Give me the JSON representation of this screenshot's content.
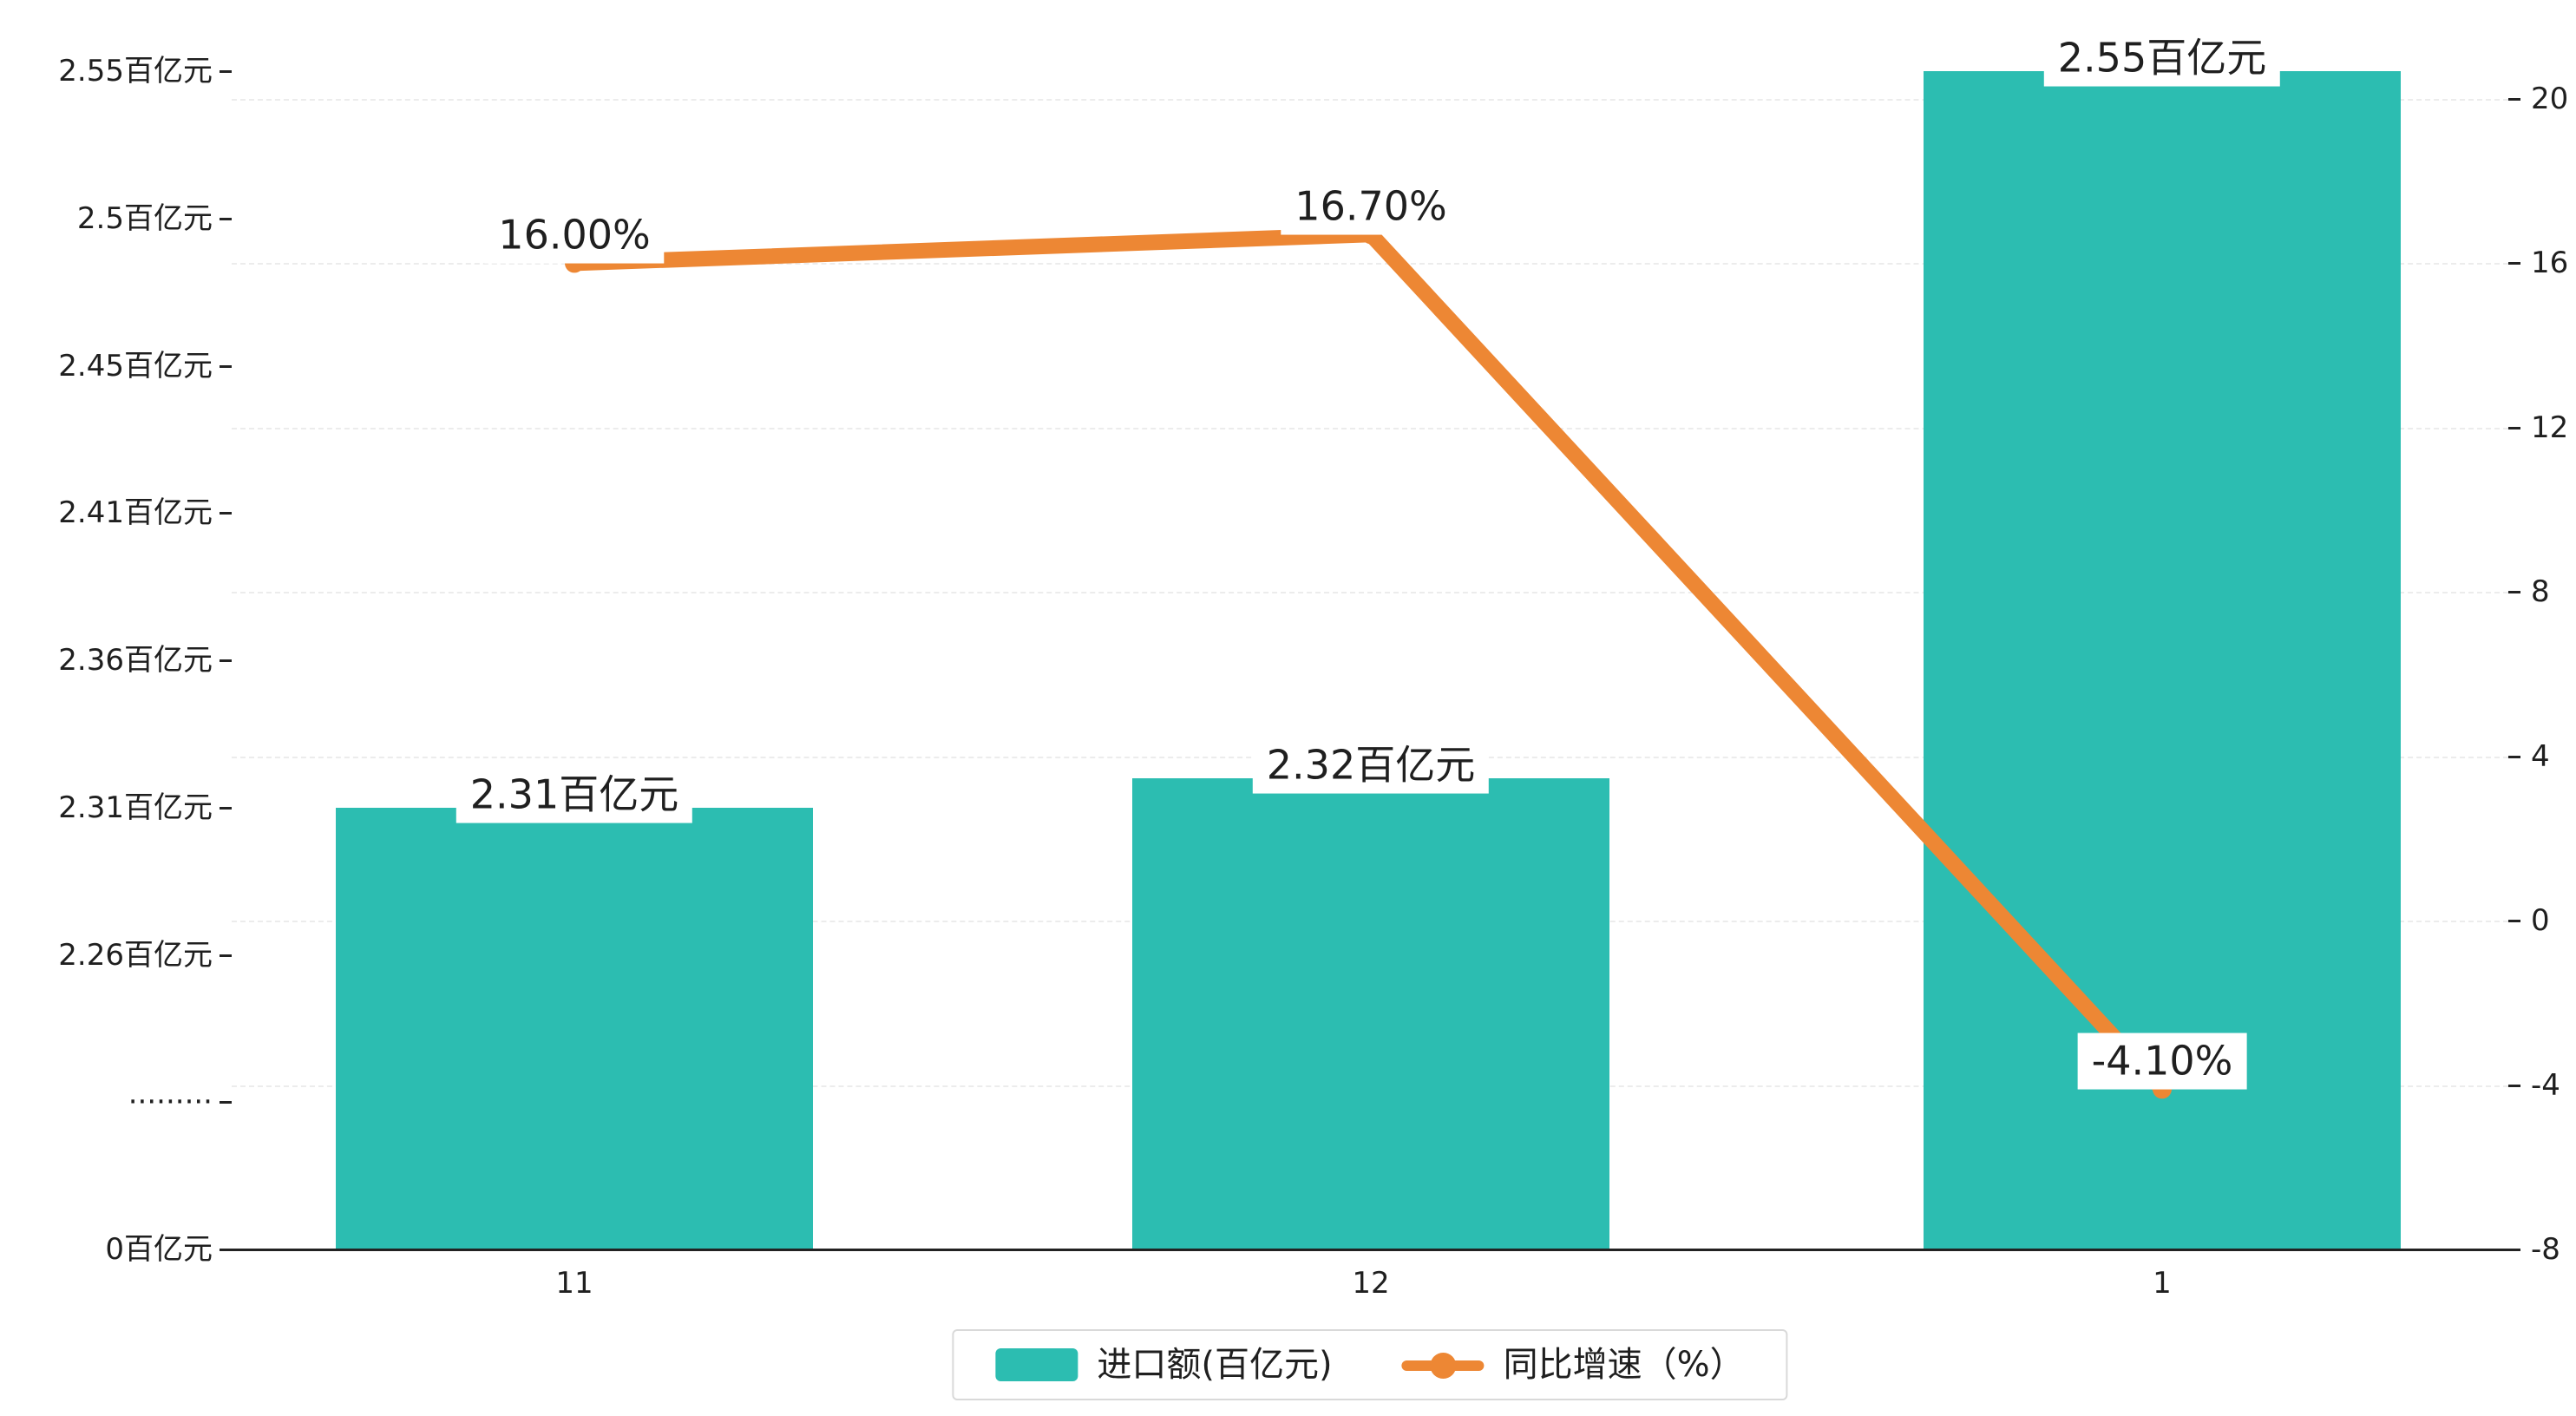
{
  "chart_data": {
    "type": "bar",
    "categories": [
      "11",
      "12",
      "1"
    ],
    "series": [
      {
        "name": "进口额(百亿元)",
        "type": "bar",
        "color": "#2cbdb1",
        "values": [
          2.31,
          2.32,
          2.55
        ],
        "labels": [
          "2.31百亿元",
          "2.32百亿元",
          "2.55百亿元"
        ]
      },
      {
        "name": "同比增速（%）",
        "type": "line",
        "color": "#ed8734",
        "values": [
          16.0,
          16.7,
          -4.1
        ],
        "labels": [
          "16.00%",
          "16.70%",
          "-4.10%"
        ]
      }
    ],
    "left_axis": {
      "ticks": [
        {
          "value": 2.55,
          "label": "2.55百亿元"
        },
        {
          "value": 2.5,
          "label": "2.5百亿元"
        },
        {
          "value": 2.45,
          "label": "2.45百亿元"
        },
        {
          "value": 2.41,
          "label": "2.41百亿元"
        },
        {
          "value": 2.36,
          "label": "2.36百亿元"
        },
        {
          "value": 2.31,
          "label": "2.31百亿元"
        },
        {
          "value": 2.26,
          "label": "2.26百亿元"
        },
        {
          "value": null,
          "label": "·········"
        },
        {
          "value": 0,
          "label": "0百亿元"
        }
      ]
    },
    "right_axis": {
      "min": -8,
      "max": 20,
      "ticks": [
        20,
        16,
        12,
        8,
        4,
        0,
        -4,
        -8
      ]
    },
    "legend": {
      "items": [
        "进口额(百亿元)",
        "同比增速（%）"
      ]
    },
    "grid": true,
    "legend_position": "bottom"
  },
  "colors": {
    "bar": "#2cbdb1",
    "line": "#ed8734",
    "text": "#1f1f1f",
    "axis": "#222222",
    "grid": "#ececec"
  }
}
